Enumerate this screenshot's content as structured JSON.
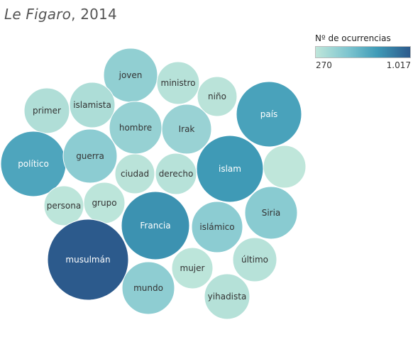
{
  "title": {
    "publication": "Le Figaro",
    "year": ", 2014"
  },
  "legend": {
    "title": "Nº de ocurrencias",
    "min_label": "270",
    "max_label": "1.017",
    "color_low": "#bfe6da",
    "color_high": "#2c5a8c"
  },
  "chart_data": {
    "type": "packed-bubble",
    "title": "Le Figaro, 2014",
    "size_and_color_measure": "Nº de ocurrencias",
    "range": [
      270,
      1017
    ],
    "bubbles": [
      {
        "label": "joven",
        "value": 450
      },
      {
        "label": "ministro",
        "value": 300
      },
      {
        "label": "primer",
        "value": 330
      },
      {
        "label": "islamista",
        "value": 340
      },
      {
        "label": "niño",
        "value": 290
      },
      {
        "label": "país",
        "value": 720
      },
      {
        "label": "hombre",
        "value": 430
      },
      {
        "label": "Irak",
        "value": 420
      },
      {
        "label": "político",
        "value": 700
      },
      {
        "label": "guerra",
        "value": 470
      },
      {
        "label": "ciudad",
        "value": 290
      },
      {
        "label": "derecho",
        "value": 300
      },
      {
        "label": "islam",
        "value": 760
      },
      {
        "label": "",
        "value": 270
      },
      {
        "label": "persona",
        "value": 280
      },
      {
        "label": "grupo",
        "value": 280
      },
      {
        "label": "Francia",
        "value": 790
      },
      {
        "label": "Siria",
        "value": 480
      },
      {
        "label": "islámico",
        "value": 470
      },
      {
        "label": "último",
        "value": 300
      },
      {
        "label": "musulmán",
        "value": 1017
      },
      {
        "label": "mujer",
        "value": 280
      },
      {
        "label": "mundo",
        "value": 460
      },
      {
        "label": "yihadista",
        "value": 310
      }
    ]
  }
}
